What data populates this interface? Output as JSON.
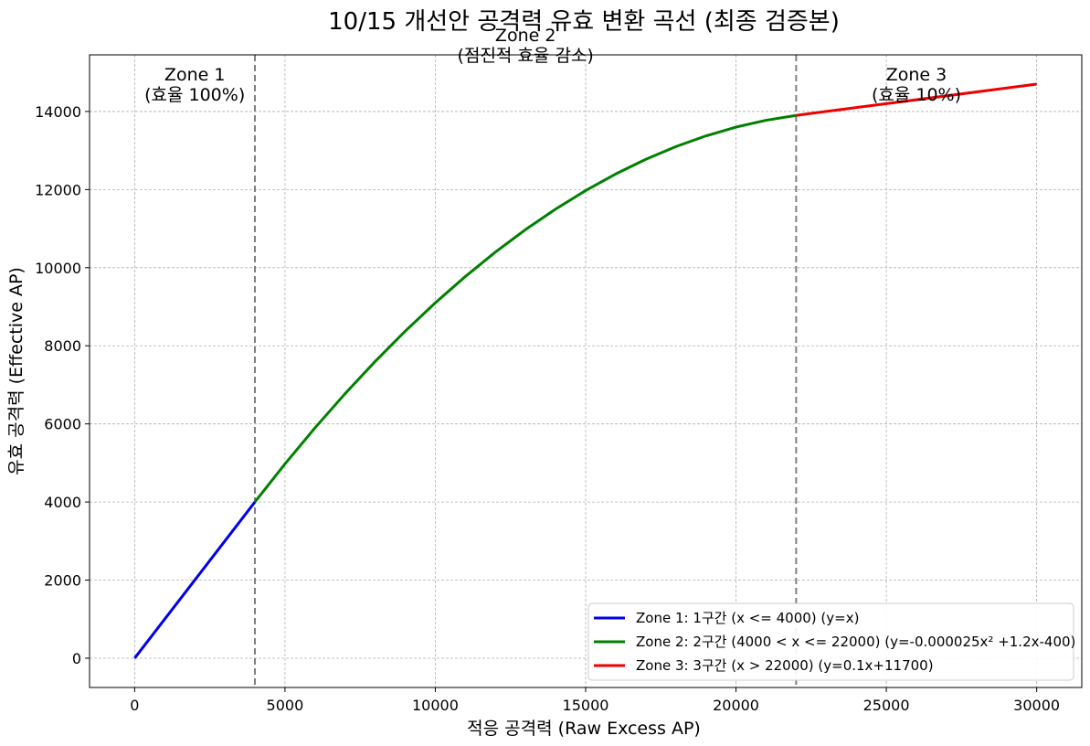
{
  "chart_data": {
    "type": "line",
    "title": "10/15 개선안 공격력 유효 변환 곡선 (최종 검증본)",
    "xlabel": "적응 공격력 (Raw Excess AP)",
    "ylabel": "유효 공격력 (Effective AP)",
    "xlim": [
      -1500,
      31500
    ],
    "ylim": [
      -750,
      15450
    ],
    "xticks": [
      0,
      5000,
      10000,
      15000,
      20000,
      25000,
      30000
    ],
    "yticks": [
      0,
      2000,
      4000,
      6000,
      8000,
      10000,
      12000,
      14000
    ],
    "grid": true,
    "legend_position": "bottom-right",
    "boundaries": [
      4000,
      22000
    ],
    "series": [
      {
        "name": "Zone 1: 1구간 (x <= 4000) (y=x)",
        "color": "#0000ee",
        "x": [
          0,
          4000
        ],
        "y": [
          0,
          4000
        ]
      },
      {
        "name": "Zone 2: 2구간 (4000 < x <= 22000) (y=-0.000025x² +1.2x-400)",
        "color": "#008000",
        "x": [
          4000,
          5000,
          6000,
          7000,
          8000,
          9000,
          10000,
          11000,
          12000,
          13000,
          14000,
          15000,
          16000,
          17000,
          18000,
          19000,
          20000,
          21000,
          22000
        ],
        "y": [
          4000,
          4975,
          5900,
          6775,
          7600,
          8375,
          9100,
          9775,
          10400,
          10975,
          11500,
          11975,
          12400,
          12775,
          13100,
          13375,
          13600,
          13775,
          13900
        ]
      },
      {
        "name": "Zone 3: 3구간 (x > 22000) (y=0.1x+11700)",
        "color": "#ee0000",
        "x": [
          22000,
          30000
        ],
        "y": [
          13900,
          14700
        ]
      }
    ],
    "annotations": [
      {
        "lines": [
          "Zone 1",
          "(효율 100%)"
        ],
        "x": 2000,
        "y": 14800
      },
      {
        "lines": [
          "Zone 2",
          "(점진적 효율 감소)"
        ],
        "x": 13000,
        "y": 15800
      },
      {
        "lines": [
          "Zone 3",
          "(효율 10%)"
        ],
        "x": 26000,
        "y": 14800
      }
    ]
  }
}
